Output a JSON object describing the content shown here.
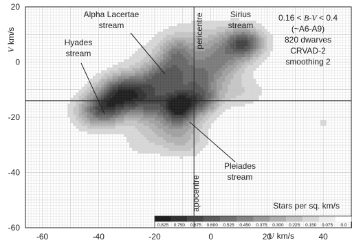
{
  "chart_data": {
    "type": "heatmap",
    "x_axis": {
      "label_var": "U",
      "label_unit": "km/s",
      "ticks": [
        -60,
        -40,
        -20,
        0,
        20,
        40
      ],
      "xlim": [
        -66,
        50
      ]
    },
    "y_axis": {
      "label_var": "V",
      "label_unit": "km/s",
      "ticks": [
        20,
        0,
        -20,
        -40,
        -60
      ],
      "ylim": [
        -60,
        20
      ]
    },
    "grid": true,
    "reference_lines": {
      "u": -6,
      "v": -14
    },
    "axis_annotations": {
      "pericentre": "pericentre",
      "apocentre": "apocentre"
    },
    "info_box": {
      "line1_pre": "0.16 < ",
      "line1_var1": "B",
      "line1_dash": "-",
      "line1_var2": "V",
      "line1_post": " < 0.4",
      "line2": "(~A6-A9)",
      "line3": "820 dwarves",
      "line4": "CRVAD-2",
      "line5": "smoothing 2"
    },
    "streams": [
      {
        "line1": "Alpha Lacertae",
        "line2": "stream",
        "pointer_u": -12,
        "pointer_v": 3.5
      },
      {
        "line1": "Sirius",
        "line2": "stream",
        "pointer_u": null,
        "pointer_v": null
      },
      {
        "line1": "Hyades",
        "line2": "stream",
        "pointer_u": -39,
        "pointer_v": -18
      },
      {
        "line1": "Pleiades",
        "line2": "stream",
        "pointer_u": -20,
        "pointer_v": -21
      }
    ],
    "density_blobs": [
      {
        "u": 12,
        "v": 7,
        "su": 4.5,
        "sv": 3.5,
        "amp": 0.55
      },
      {
        "u": 4,
        "v": 1,
        "su": 6,
        "sv": 5,
        "amp": 0.3
      },
      {
        "u": 0,
        "v": 7,
        "su": 12,
        "sv": 6,
        "amp": 0.18
      },
      {
        "u": -12,
        "v": 3,
        "su": 4,
        "sv": 4,
        "amp": 0.32
      },
      {
        "u": -5,
        "v": -6,
        "su": 6,
        "sv": 5,
        "amp": 0.45
      },
      {
        "u": -17,
        "v": -5,
        "su": 5,
        "sv": 4,
        "amp": 0.42
      },
      {
        "u": -28,
        "v": -9,
        "su": 7,
        "sv": 4,
        "amp": 0.45
      },
      {
        "u": -38,
        "v": -17,
        "su": 5,
        "sv": 4,
        "amp": 0.55
      },
      {
        "u": -33,
        "v": -12,
        "su": 5,
        "sv": 4,
        "amp": 0.35
      },
      {
        "u": -22,
        "v": -15,
        "su": 7,
        "sv": 4,
        "amp": 0.5
      },
      {
        "u": -11,
        "v": -16,
        "su": 4,
        "sv": 4,
        "amp": 0.72
      },
      {
        "u": -3,
        "v": -14,
        "su": 4,
        "sv": 3.5,
        "amp": 0.42
      },
      {
        "u": -15,
        "v": -23,
        "su": 8,
        "sv": 4,
        "amp": 0.22
      },
      {
        "u": -10,
        "v": -29,
        "su": 6,
        "sv": 4,
        "amp": 0.18
      },
      {
        "u": -44,
        "v": -18,
        "su": 5,
        "sv": 5,
        "amp": 0.14
      },
      {
        "u": 10,
        "v": -11,
        "su": 7,
        "sv": 4,
        "amp": 0.14
      },
      {
        "u": -25,
        "v": -30,
        "su": 6,
        "sv": 4,
        "amp": 0.08
      },
      {
        "u": -20,
        "v": 0,
        "su": 9,
        "sv": 6,
        "amp": 0.08
      },
      {
        "u": 33,
        "v": -17,
        "su": 1.5,
        "sv": 1.5,
        "amp": 0.07
      },
      {
        "u": 40,
        "v": -22,
        "su": 1.5,
        "sv": 2,
        "amp": 0.09
      }
    ],
    "colorbar": {
      "label": "Stars per sq. km/s",
      "ticks": [
        "0.825",
        "0.750",
        "0.675",
        "0.600",
        "0.525",
        "0.450",
        "0.375",
        "0.300",
        "0.225",
        "0.150",
        "0.075",
        "0.0"
      ]
    }
  }
}
